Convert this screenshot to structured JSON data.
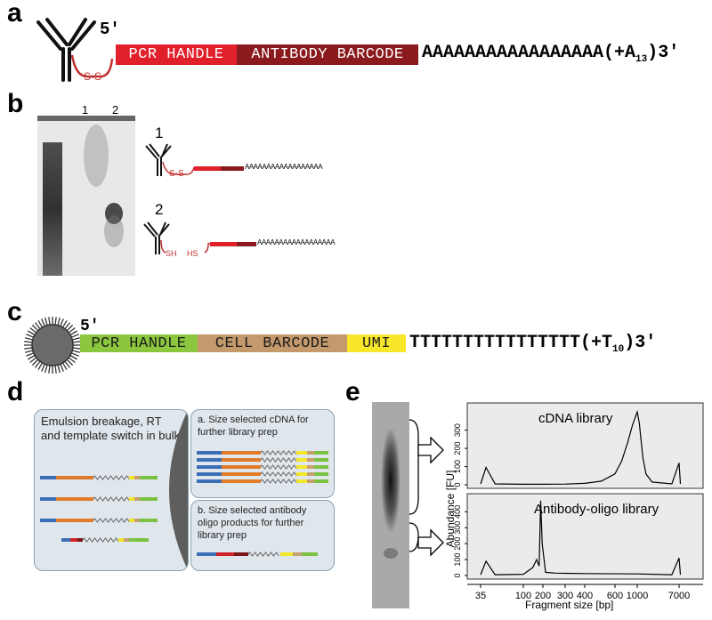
{
  "panels": {
    "a": {
      "letter": "a",
      "five_prime": "5′",
      "ss_label": "S-S",
      "segments": [
        "PCR HANDLE",
        "ANTIBODY BARCODE"
      ],
      "tail": "AAAAAAAAAAAAAAAAA(+A",
      "tail_sub": "13",
      "tail_end": ")3′",
      "colors": {
        "pcr_handle": "#e0202a",
        "antibody_barcode": "#8b1a1f",
        "linker": "#c0302f"
      }
    },
    "b": {
      "letter": "b",
      "lanes": [
        "1",
        "2"
      ],
      "items": [
        {
          "number": "1",
          "link": "S-S",
          "tail": "AAAAAAAAAAAAAAAAAA"
        },
        {
          "number": "2",
          "left_label": "SH",
          "right_label": "HS",
          "tail": "AAAAAAAAAAAAAAAAAA"
        }
      ]
    },
    "c": {
      "letter": "c",
      "five_prime": "5′",
      "segments": [
        "PCR HANDLE",
        "CELL BARCODE",
        "UMI"
      ],
      "tail": "TTTTTTTTTTTTTTTT(+T",
      "tail_sub": "10",
      "tail_end": ")3′",
      "colors": {
        "pcr_handle": "#8cc63f",
        "cell_barcode": "#c49a6c",
        "umi": "#f7e62a"
      }
    },
    "d": {
      "letter": "d",
      "left_text": "Emulsion breakage, RT and template switch in bulk",
      "box_a": "a. Size selected cDNA for further library prep",
      "box_b": "b. Size selected antibody oligo products for further library prep",
      "colors": {
        "blue": "#3a6fb5",
        "orange": "#e07b2a",
        "yellow": "#f2e82a",
        "green": "#7cc242",
        "red": "#d0222a",
        "darkred": "#7a1416",
        "tan": "#c8a070"
      }
    },
    "e": {
      "letter": "e",
      "ylabel": "Abundance [FU]",
      "xlabel": "Fragment size [bp]"
    }
  },
  "chart_data": [
    {
      "type": "line",
      "title": "cDNA library",
      "x_ticks": [
        "35",
        "100",
        "200",
        "300",
        "400",
        "600",
        "1000",
        "7000"
      ],
      "y_ticks": [
        0,
        100,
        200,
        300
      ],
      "ylim": [
        0,
        420
      ],
      "series": [
        {
          "x": [
            35,
            40,
            50,
            100,
            200,
            300,
            400,
            500,
            600,
            700,
            800,
            900,
            1000,
            1100,
            1300,
            1500,
            2000,
            5000,
            7000,
            7500
          ],
          "y": [
            5,
            95,
            5,
            3,
            3,
            4,
            8,
            20,
            60,
            130,
            230,
            330,
            400,
            340,
            150,
            60,
            15,
            5,
            120,
            5
          ]
        }
      ]
    },
    {
      "type": "line",
      "title": "Antibody-oligo library",
      "x_ticks": [
        "35",
        "100",
        "200",
        "300",
        "400",
        "600",
        "1000",
        "7000"
      ],
      "y_ticks": [
        0,
        100,
        200,
        300,
        400
      ],
      "ylim": [
        0,
        480
      ],
      "series": [
        {
          "x": [
            35,
            40,
            50,
            100,
            140,
            160,
            175,
            185,
            195,
            210,
            250,
            400,
            1000,
            5000,
            7000,
            7500
          ],
          "y": [
            5,
            90,
            5,
            8,
            50,
            100,
            60,
            470,
            200,
            20,
            15,
            12,
            10,
            5,
            110,
            5
          ]
        }
      ]
    }
  ]
}
